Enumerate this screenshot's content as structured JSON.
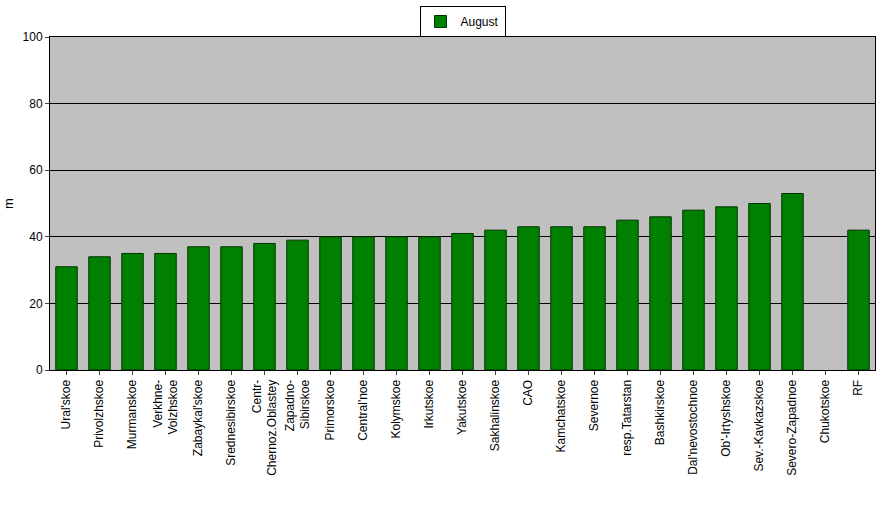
{
  "chart_data": {
    "type": "bar",
    "y_label": "m",
    "categories": [
      "Ural'skoe",
      "Privolzhskoe",
      "Murmanskoe",
      "Verkhne-\nVolzhskoe",
      "Zabaykal'skoe",
      "Srednesibirskoe",
      "Centr-\nChernoz.Oblastey",
      "Zapadno-\nSibirskoe",
      "Primorskoe",
      "Central'noe",
      "Kolymskoe",
      "Irkutskoe",
      "Yakutskoe",
      "Sakhalinskoe",
      "CAO",
      "Kamchatskoe",
      "Severnoe",
      "resp.Tatarstan",
      "Bashkirskoe",
      "Dal'nevostochnoe",
      "Ob'-Irtyshskoe",
      "Sev.-Kavkazskoe",
      "Severo-Zapadnoe",
      "Chukotskoe",
      "RF"
    ],
    "series": [
      {
        "name": "August",
        "color": "#008000",
        "values": [
          31,
          34,
          35,
          35,
          37,
          37,
          38,
          39,
          40,
          40,
          40,
          40,
          41,
          42,
          43,
          43,
          43,
          45,
          46,
          48,
          49,
          50,
          53,
          null,
          42
        ]
      }
    ],
    "ylim": [
      0,
      100
    ],
    "yticks": [
      0,
      20,
      40,
      60,
      80,
      100
    ],
    "grid": true,
    "legend": "top"
  }
}
